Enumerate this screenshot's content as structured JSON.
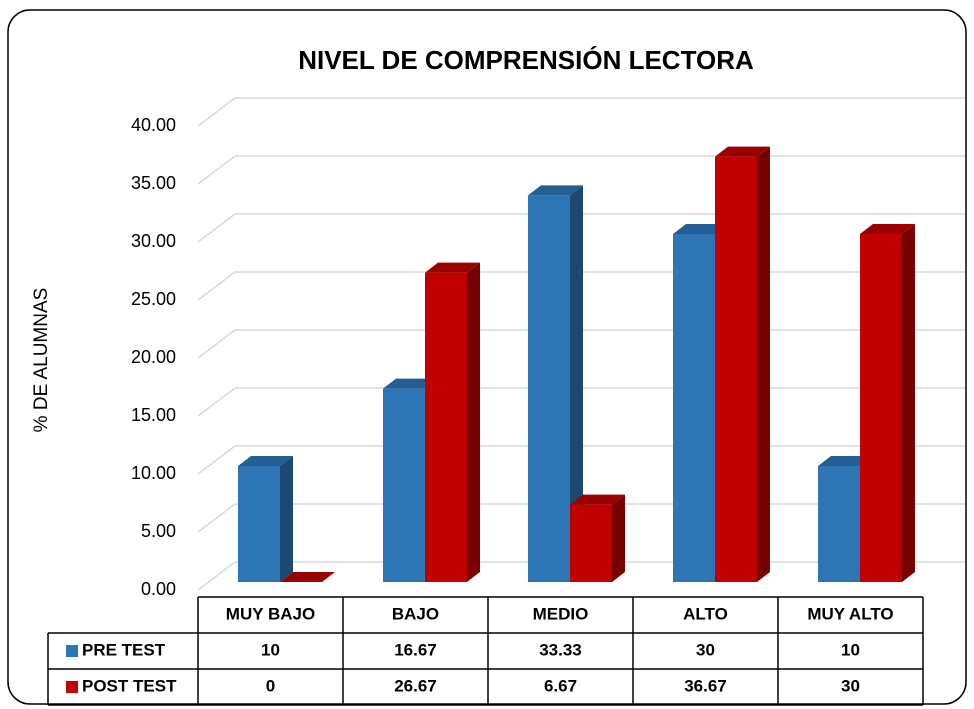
{
  "chart_data": {
    "type": "bar3d",
    "title": "NIVEL DE COMPRENSIÓN LECTORA",
    "y_label": "% DE ALUMNAS",
    "categories": [
      "MUY BAJO",
      "BAJO",
      "MEDIO",
      "ALTO",
      "MUY ALTO"
    ],
    "series": [
      {
        "name": "PRE TEST",
        "color": "#2e75b6",
        "values": [
          10,
          16.67,
          33.33,
          30,
          10
        ]
      },
      {
        "name": "POST TEST",
        "color": "#c00000",
        "values": [
          0,
          26.67,
          6.67,
          36.67,
          30
        ]
      }
    ],
    "ylim": [
      0,
      40
    ],
    "yticks": [
      {
        "value": 0,
        "label": "0.00"
      },
      {
        "value": 5,
        "label": "5.00"
      },
      {
        "value": 10,
        "label": "10.00"
      },
      {
        "value": 15,
        "label": "15.00"
      },
      {
        "value": 20,
        "label": "20.00"
      },
      {
        "value": 25,
        "label": "25.00"
      },
      {
        "value": 30,
        "label": "30.00"
      },
      {
        "value": 35,
        "label": "35.00"
      },
      {
        "value": 40,
        "label": "40.00"
      }
    ],
    "grid": true,
    "data_table": true
  }
}
